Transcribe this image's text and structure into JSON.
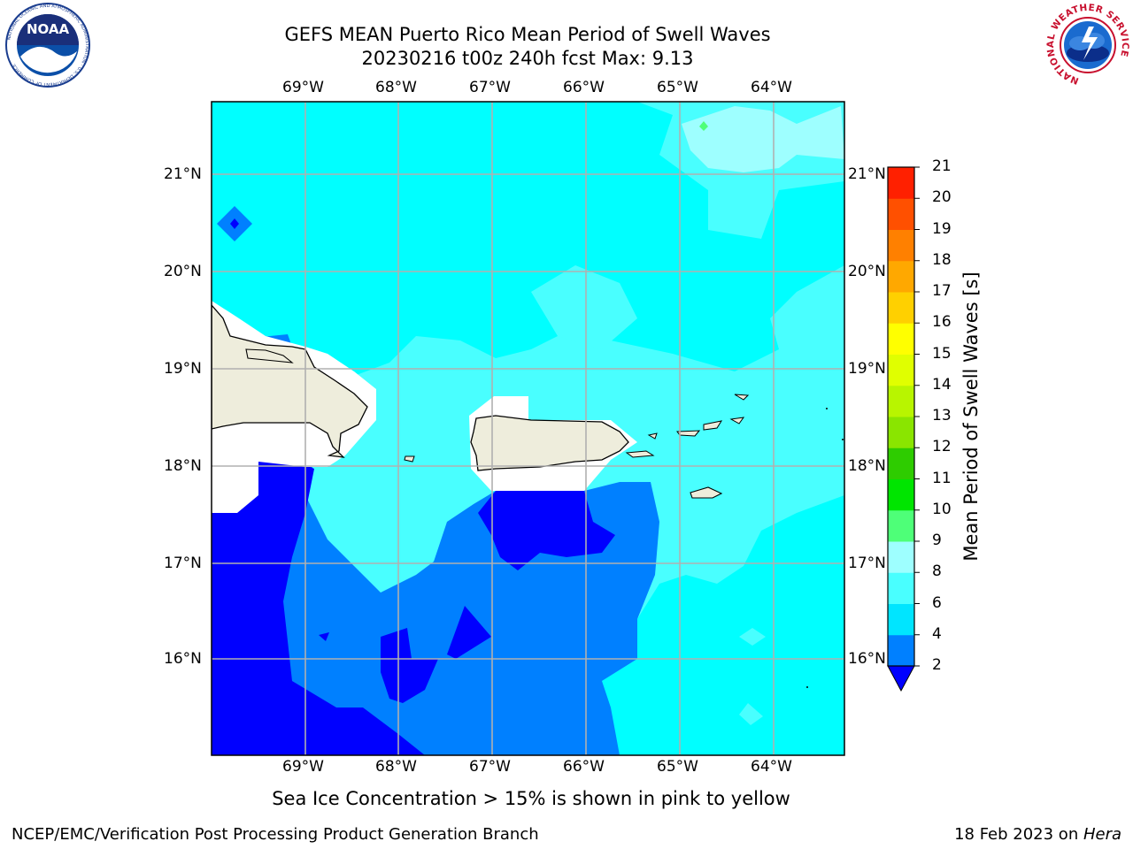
{
  "header": {
    "title_line1": "GEFS MEAN Puerto Rico Mean Period of Swell Waves",
    "title_line2": "20230216 t00z 240h fcst   Max: 9.13"
  },
  "logos": {
    "left": {
      "text": "NOAA",
      "ring_text": "NATIONAL OCEANIC AND ATMOSPHERIC ADMINISTRATION · U.S. DEPARTMENT OF COMMERCE"
    },
    "right": {
      "ring_text": "NATIONAL WEATHER SERVICE"
    }
  },
  "map": {
    "lon_labels": [
      "69°W",
      "68°W",
      "67°W",
      "66°W",
      "65°W",
      "64°W"
    ],
    "lat_labels": [
      "21°N",
      "20°N",
      "19°N",
      "18°N",
      "17°N",
      "16°N"
    ],
    "colors": {
      "land": "#eeeddc",
      "dark_blue": "#0000ff",
      "mid_blue": "#0080ff",
      "cyan": "#00ffff",
      "light_cyan": "#49ffff",
      "grid": "#b0b0b0"
    }
  },
  "colorbar": {
    "label": "Mean Period of Swell Waves [s]",
    "ticks": [
      "2",
      "4",
      "6",
      "8",
      "9",
      "10",
      "11",
      "12",
      "13",
      "14",
      "15",
      "16",
      "17",
      "18",
      "19",
      "20",
      "21"
    ],
    "colors": [
      "#0080ff",
      "#00e5ff",
      "#49ffff",
      "#9effff",
      "#4eff78",
      "#00e500",
      "#2ecc00",
      "#8ae500",
      "#b8f500",
      "#e0ff00",
      "#ffff00",
      "#ffd000",
      "#ffa800",
      "#ff8000",
      "#ff5000",
      "#ff2000"
    ],
    "under_color": "#0000ff"
  },
  "footer": {
    "note": "Sea Ice Concentration > 15% is shown in pink to yellow",
    "left": "NCEP/EMC/Verification Post Processing Product Generation Branch",
    "date": "18 Feb 2023 on ",
    "machine": "Hera"
  }
}
